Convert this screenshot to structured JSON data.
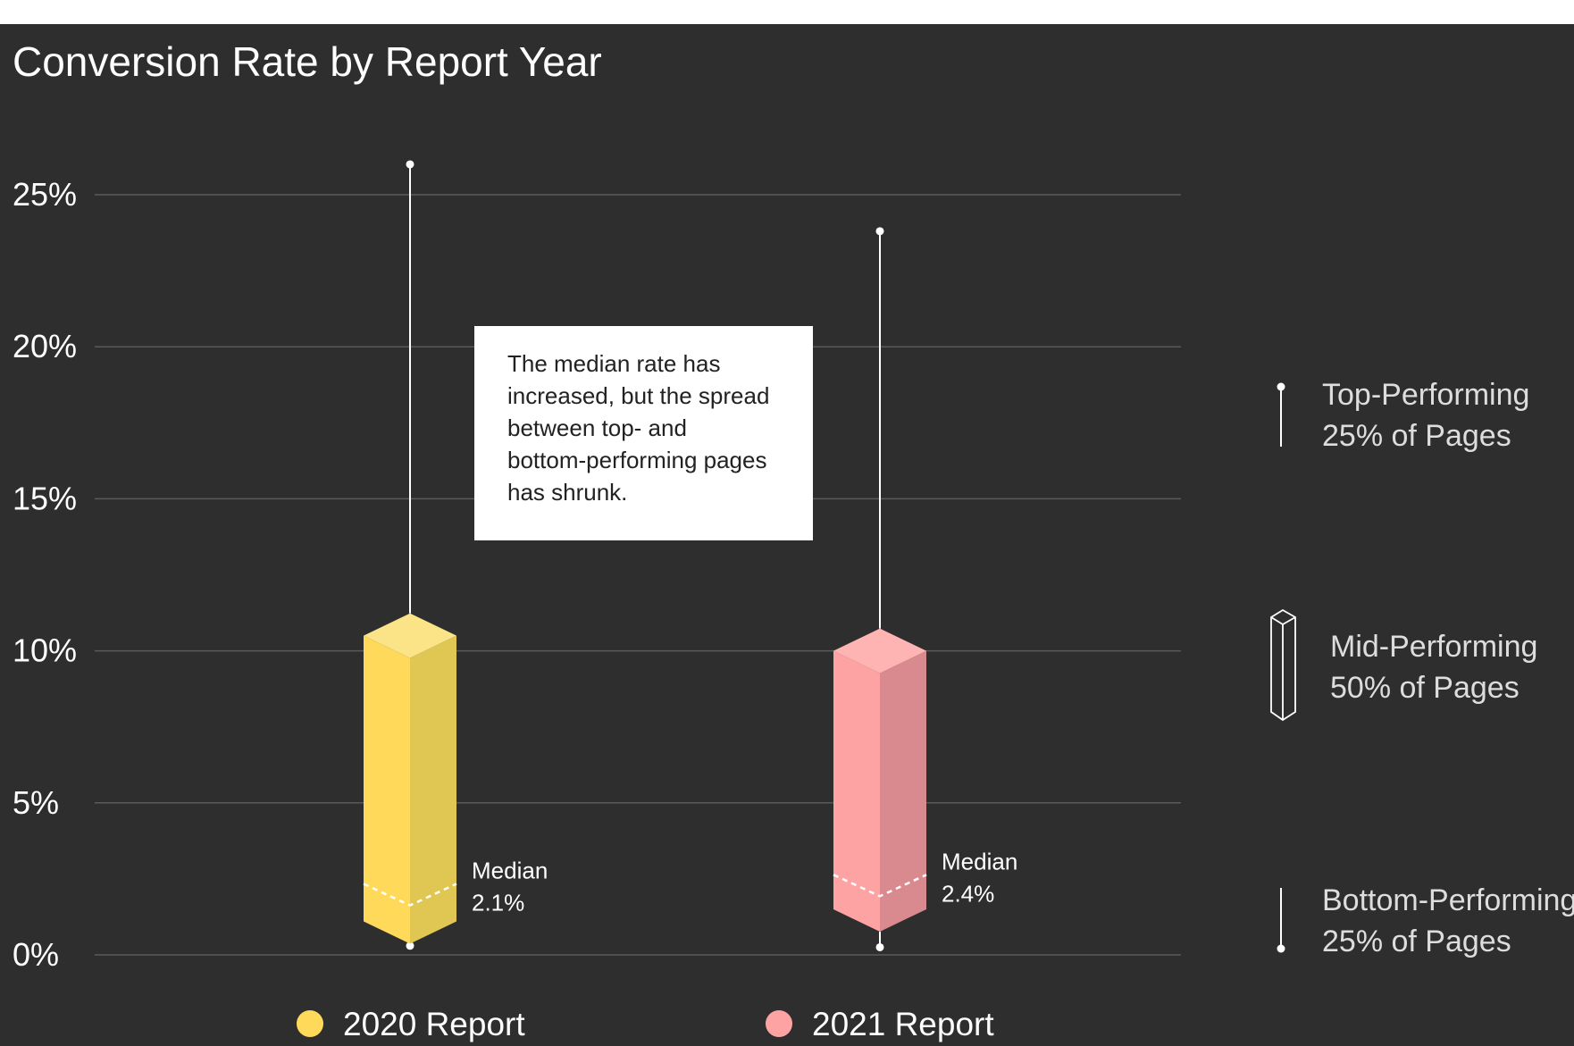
{
  "chart_data": {
    "type": "box",
    "title": "Conversion Rate by Report Year",
    "yticks": [
      "0%",
      "5%",
      "10%",
      "15%",
      "20%",
      "25%"
    ],
    "ylim": [
      0,
      25
    ],
    "grid": true,
    "series": [
      {
        "name": "2020 Report",
        "color": "#ffd95a",
        "color_dark": "#e0c652",
        "color_top": "#fbe487",
        "min": 0.3,
        "q1": 1.1,
        "median": 2.1,
        "q3": 10.5,
        "max": 26.0,
        "median_label": "Median",
        "median_value": "2.1%"
      },
      {
        "name": "2021 Report",
        "color": "#fda3a3",
        "color_dark": "#d98a8e",
        "color_top": "#ffb4b4",
        "min": 0.25,
        "q1": 1.5,
        "median": 2.4,
        "q3": 10.0,
        "max": 23.8,
        "median_label": "Median",
        "median_value": "2.4%"
      }
    ],
    "annotation": [
      "The median rate has",
      "increased, but the spread",
      "between top- and",
      "bottom-performing pages",
      "has shrunk."
    ],
    "key": {
      "top": [
        "Top-Performing",
        "25% of Pages"
      ],
      "mid": [
        "Mid-Performing",
        "50% of Pages"
      ],
      "bottom": [
        "Bottom-Performing",
        "25% of Pages"
      ]
    }
  }
}
